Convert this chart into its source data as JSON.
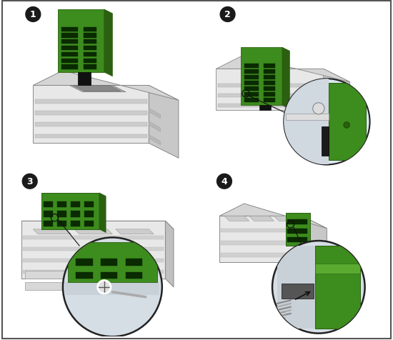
{
  "background_color": "#ffffff",
  "panel_border_color": "#333333",
  "label_bg_color": "#1a1a1a",
  "label_text_color": "#ffffff",
  "green_color": "#3d8c1e",
  "green_light": "#5aaa30",
  "green_dark": "#2a6010",
  "chassis_top": "#d8d8d8",
  "chassis_front": "#e8e8e8",
  "chassis_right": "#c0c0c0",
  "chassis_edge": "#888888",
  "zoom_bg": "#dde8f0",
  "zoom_edge": "#222222",
  "panel_bg": "#ffffff",
  "slot_color": "#0a2a00",
  "arrow_color": "#111111",
  "white_connector": "#e0e0e0",
  "grey_connector": "#999999",
  "dark_bracket": "#222222",
  "screw_color": "#cccccc",
  "cable_color": "#aaaaaa",
  "divider_color": "#555555"
}
